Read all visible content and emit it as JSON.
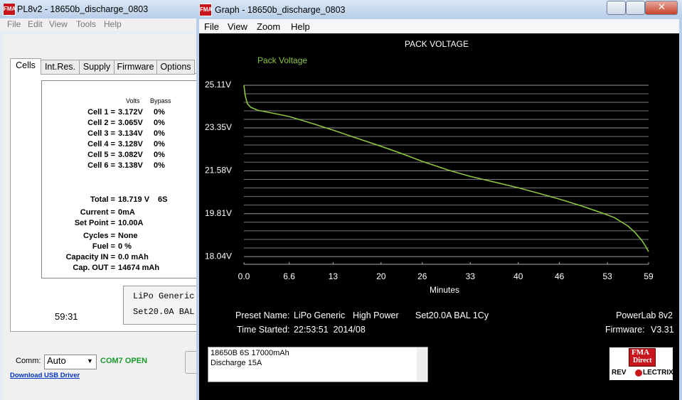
{
  "left_window": {
    "title": "PL8v2 - 18650b_discharge_0803",
    "menu": [
      "File",
      "Edit",
      "View",
      "Tools",
      "Help"
    ],
    "tabs": [
      "Cells",
      "Int.Res.",
      "Supply",
      "Firmware",
      "Options"
    ],
    "cells_header": [
      "Volts",
      "Bypass"
    ],
    "cells": [
      [
        "Cell 1 =",
        "3.172V",
        "0%"
      ],
      [
        "Cell 2 =",
        "3.065V",
        "0%"
      ],
      [
        "Cell 3 =",
        "3.134V",
        "0%"
      ],
      [
        "Cell 4 =",
        "3.128V",
        "0%"
      ],
      [
        "Cell 5 =",
        "3.082V",
        "0%"
      ],
      [
        "Cell 6 =",
        "3.138V",
        "0%"
      ]
    ],
    "total": [
      "Total =",
      "18.719 V",
      "6S"
    ],
    "fields": [
      [
        "Current =",
        "0mA"
      ],
      [
        "Set Point =",
        "10.00A"
      ],
      [
        "Cycles =",
        "None"
      ],
      [
        "Fuel =",
        "0 %"
      ],
      [
        "Capacity IN =",
        "0.0 mAh"
      ],
      [
        "Cap. OUT =",
        "14674 mAh"
      ]
    ],
    "preset_lines": [
      "LiPo Generic",
      "Set20.0A BAL"
    ],
    "timer": "59:31",
    "comm_label": "Comm:",
    "comm_value": "Auto",
    "comm_status": "COM7 OPEN",
    "driver_link": "Download USB Driver"
  },
  "graph_window": {
    "title": "Graph - 18650b_discharge_0803",
    "menu": [
      "File",
      "View",
      "Zoom",
      "Help"
    ],
    "preset_label": "Preset Name:",
    "preset_name": "LiPo Generic",
    "preset_mode": "High Power",
    "preset_setting": "Set20.0A BAL 1Cy",
    "device": "PowerLab 8v2",
    "time_label": "Time Started:",
    "time_value": "22:53:51  2014/08",
    "firmware_label": "Firmware:",
    "firmware_value": "V3.31",
    "notes": [
      "18650B 6S 17000mAh",
      "Discharge 15A"
    ],
    "logo": [
      "FMA",
      "Direct"
    ],
    "brand": [
      "REV",
      "LECTRIX"
    ]
  },
  "chart_data": {
    "type": "line",
    "title": "PACK VOLTAGE",
    "xlabel": "Minutes",
    "x": [
      0,
      0.2,
      0.5,
      1,
      2,
      4,
      6.6,
      10,
      13,
      16,
      20,
      23,
      26,
      30,
      33,
      36,
      40,
      43,
      46,
      49,
      52,
      54,
      56,
      57,
      58,
      58.6,
      59
    ],
    "series": [
      {
        "name": "Pack Voltage",
        "color": "#8cc63f",
        "values": [
          25.11,
          24.67,
          24.35,
          24.2,
          24.08,
          23.97,
          23.82,
          23.53,
          23.26,
          22.97,
          22.59,
          22.29,
          21.97,
          21.59,
          21.35,
          21.15,
          20.88,
          20.65,
          20.41,
          20.15,
          19.86,
          19.65,
          19.3,
          19.04,
          18.71,
          18.45,
          18.24
        ]
      }
    ],
    "xlim": [
      0,
      59
    ],
    "ylim": [
      17.72,
      25.11
    ],
    "xticks": [
      {
        "value": 0,
        "label": "0.0"
      },
      6.6,
      13,
      20,
      26,
      33,
      40,
      46,
      53,
      59
    ],
    "yticks": [
      {
        "value": 25.11,
        "label": "25.11V"
      },
      {
        "value": 23.35,
        "label": "23.35V"
      },
      {
        "value": 21.58,
        "label": "21.58V"
      },
      {
        "value": 19.81,
        "label": "19.81V"
      },
      {
        "value": 18.04,
        "label": "18.04V"
      }
    ],
    "grid": true
  }
}
